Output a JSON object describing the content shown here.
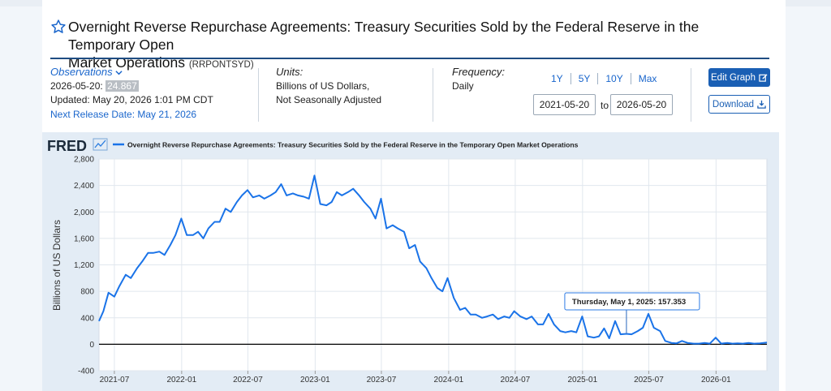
{
  "header": {
    "title": "Overnight Reverse Repurchase Agreements: Treasury Securities Sold by the Federal Reserve in the Temporary Open Market Operations",
    "title_line1": "Overnight Reverse Repurchase Agreements: Treasury Securities Sold by the Federal Reserve in the Temporary Open",
    "title_line2": "Market Operations",
    "series_id": "(RRPONTSYD)"
  },
  "observations": {
    "label": "Observations",
    "date": "2026-05-20:",
    "value": "24.867",
    "updated": "Updated: May 20, 2026 1:01 PM CDT",
    "next_release": "Next Release Date: May 21, 2026"
  },
  "units": {
    "label": "Units:",
    "line1": "Billions of US Dollars,",
    "line2": "Not Seasonally Adjusted"
  },
  "frequency": {
    "label": "Frequency:",
    "value": "Daily"
  },
  "range_buttons": [
    "1Y",
    "5Y",
    "10Y",
    "Max"
  ],
  "date_range": {
    "start": "2021-05-20",
    "to_label": "to",
    "end": "2026-05-20"
  },
  "buttons": {
    "edit_graph": "Edit Graph",
    "download": "Download"
  },
  "colors": {
    "accent": "#1a5fb4",
    "series": "#1a73e8",
    "link": "#1a66cc"
  },
  "chart_data": {
    "type": "line",
    "brand": "FRED",
    "legend": "Overnight Reverse Repurchase Agreements: Treasury Securities Sold by the Federal Reserve in the Temporary Open Market Operations",
    "ylabel": "Billions of US Dollars",
    "xlabel": "",
    "ylim": [
      -400,
      2800
    ],
    "xlim": [
      "2021-05-20",
      "2026-05-20"
    ],
    "yticks": [
      "2,800",
      "2,400",
      "2,000",
      "1,600",
      "1,200",
      "800",
      "400",
      "0",
      "-400"
    ],
    "ytick_values": [
      2800,
      2400,
      2000,
      1600,
      1200,
      800,
      400,
      0,
      -400
    ],
    "xticks": [
      "2021-07",
      "2022-01",
      "2022-07",
      "2023-01",
      "2023-07",
      "2024-01",
      "2024-07",
      "2025-01",
      "2025-07",
      "2026-01"
    ],
    "xtick_dates": [
      "2021-07-01",
      "2022-01-01",
      "2022-07-01",
      "2023-01-01",
      "2023-07-01",
      "2024-01-01",
      "2024-07-01",
      "2025-01-01",
      "2025-07-01",
      "2026-01-01"
    ],
    "grid": true,
    "series": [
      {
        "name": "Overnight Reverse Repurchase Agreements: Treasury Securities Sold by the Federal Reserve in the Temporary Open Market Operations",
        "x": [
          "2021-05-20",
          "2021-06-01",
          "2021-06-15",
          "2021-07-01",
          "2021-07-15",
          "2021-08-01",
          "2021-08-15",
          "2021-09-01",
          "2021-09-15",
          "2021-10-01",
          "2021-10-15",
          "2021-11-01",
          "2021-11-15",
          "2021-12-01",
          "2021-12-15",
          "2021-12-31",
          "2022-01-15",
          "2022-02-01",
          "2022-02-15",
          "2022-03-01",
          "2022-03-15",
          "2022-04-01",
          "2022-04-15",
          "2022-05-01",
          "2022-05-15",
          "2022-06-01",
          "2022-06-15",
          "2022-06-30",
          "2022-07-15",
          "2022-08-01",
          "2022-08-15",
          "2022-09-01",
          "2022-09-15",
          "2022-09-30",
          "2022-10-15",
          "2022-11-01",
          "2022-11-15",
          "2022-12-01",
          "2022-12-15",
          "2022-12-30",
          "2023-01-15",
          "2023-02-01",
          "2023-02-15",
          "2023-03-01",
          "2023-03-15",
          "2023-04-01",
          "2023-04-15",
          "2023-05-01",
          "2023-05-15",
          "2023-06-01",
          "2023-06-15",
          "2023-06-30",
          "2023-07-15",
          "2023-08-01",
          "2023-08-15",
          "2023-09-01",
          "2023-09-15",
          "2023-10-01",
          "2023-10-15",
          "2023-11-01",
          "2023-11-15",
          "2023-12-01",
          "2023-12-15",
          "2023-12-29",
          "2024-01-15",
          "2024-02-01",
          "2024-02-15",
          "2024-03-01",
          "2024-03-15",
          "2024-04-01",
          "2024-04-15",
          "2024-05-01",
          "2024-05-15",
          "2024-06-01",
          "2024-06-15",
          "2024-06-28",
          "2024-07-15",
          "2024-08-01",
          "2024-08-15",
          "2024-09-01",
          "2024-09-15",
          "2024-09-30",
          "2024-10-15",
          "2024-11-01",
          "2024-11-15",
          "2024-12-01",
          "2024-12-15",
          "2024-12-31",
          "2025-01-15",
          "2025-02-01",
          "2025-02-15",
          "2025-03-01",
          "2025-03-15",
          "2025-03-31",
          "2025-04-15",
          "2025-05-01",
          "2025-05-15",
          "2025-06-01",
          "2025-06-15",
          "2025-06-30",
          "2025-07-15",
          "2025-08-01",
          "2025-08-15",
          "2025-09-01",
          "2025-09-15",
          "2025-09-30",
          "2025-10-15",
          "2025-11-01",
          "2025-11-15",
          "2025-12-01",
          "2025-12-15",
          "2025-12-31",
          "2026-01-15",
          "2026-02-01",
          "2026-02-15",
          "2026-03-01",
          "2026-03-15",
          "2026-03-31",
          "2026-04-15",
          "2026-05-01",
          "2026-05-20"
        ],
        "y": [
          350,
          500,
          780,
          720,
          880,
          1050,
          1000,
          1150,
          1250,
          1380,
          1380,
          1400,
          1350,
          1500,
          1650,
          1900,
          1650,
          1650,
          1700,
          1600,
          1750,
          1850,
          1850,
          2050,
          2000,
          2150,
          2250,
          2330,
          2220,
          2250,
          2200,
          2250,
          2300,
          2420,
          2250,
          2280,
          2250,
          2230,
          2200,
          2550,
          2120,
          2100,
          2150,
          2300,
          2250,
          2300,
          2350,
          2250,
          2150,
          2050,
          1900,
          2200,
          1750,
          1800,
          1750,
          1700,
          1450,
          1500,
          1250,
          1150,
          1000,
          850,
          800,
          1000,
          700,
          520,
          550,
          450,
          450,
          400,
          420,
          450,
          380,
          420,
          400,
          500,
          420,
          380,
          420,
          300,
          300,
          460,
          300,
          200,
          180,
          200,
          180,
          420,
          120,
          100,
          120,
          240,
          90,
          350,
          150,
          157.353,
          150,
          200,
          250,
          460,
          250,
          200,
          50,
          20,
          15,
          50,
          20,
          10,
          10,
          20,
          10,
          100,
          10,
          20,
          10,
          15,
          10,
          20,
          10,
          15,
          24.867
        ]
      }
    ],
    "annotations": [
      {
        "date": "2025-05-01",
        "value": 157.353,
        "text": "Thursday, May 1, 2025:",
        "value_text": "157.353"
      }
    ]
  }
}
